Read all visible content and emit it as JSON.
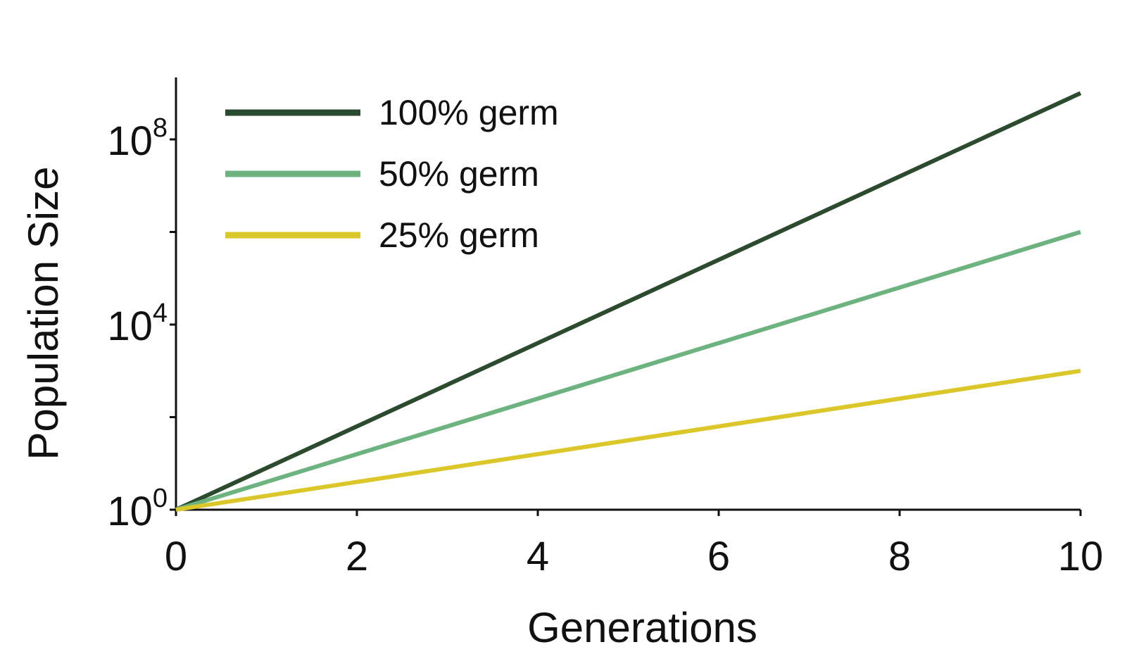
{
  "chart_data": {
    "type": "line",
    "title": "",
    "xlabel": "Generations",
    "ylabel": "Population Size",
    "xlim": [
      0,
      10
    ],
    "ylim": [
      1,
      2000000000
    ],
    "yscale": "log",
    "grid": false,
    "legend_position": "top-left",
    "x_ticks": [
      {
        "value": 0,
        "label": "0"
      },
      {
        "value": 2,
        "label": "2"
      },
      {
        "value": 4,
        "label": "4"
      },
      {
        "value": 6,
        "label": "6"
      },
      {
        "value": 8,
        "label": "8"
      },
      {
        "value": 10,
        "label": "10"
      }
    ],
    "y_ticks": [
      {
        "value": 1,
        "base": "10",
        "exponent": "0"
      },
      {
        "value": 10000,
        "base": "10",
        "exponent": "4"
      },
      {
        "value": 100000000,
        "base": "10",
        "exponent": "8"
      }
    ],
    "y_minor_ticks": [
      100,
      1000000
    ],
    "series": [
      {
        "name": "100% germ",
        "color": "#2b4a2e",
        "x": [
          0,
          10
        ],
        "y": [
          1,
          1000000000
        ]
      },
      {
        "name": "50% germ",
        "color": "#6db37f",
        "x": [
          0,
          10
        ],
        "y": [
          1,
          1000000
        ]
      },
      {
        "name": "25% germ",
        "color": "#dcc72a",
        "x": [
          0,
          10
        ],
        "y": [
          1,
          1000
        ]
      }
    ]
  }
}
